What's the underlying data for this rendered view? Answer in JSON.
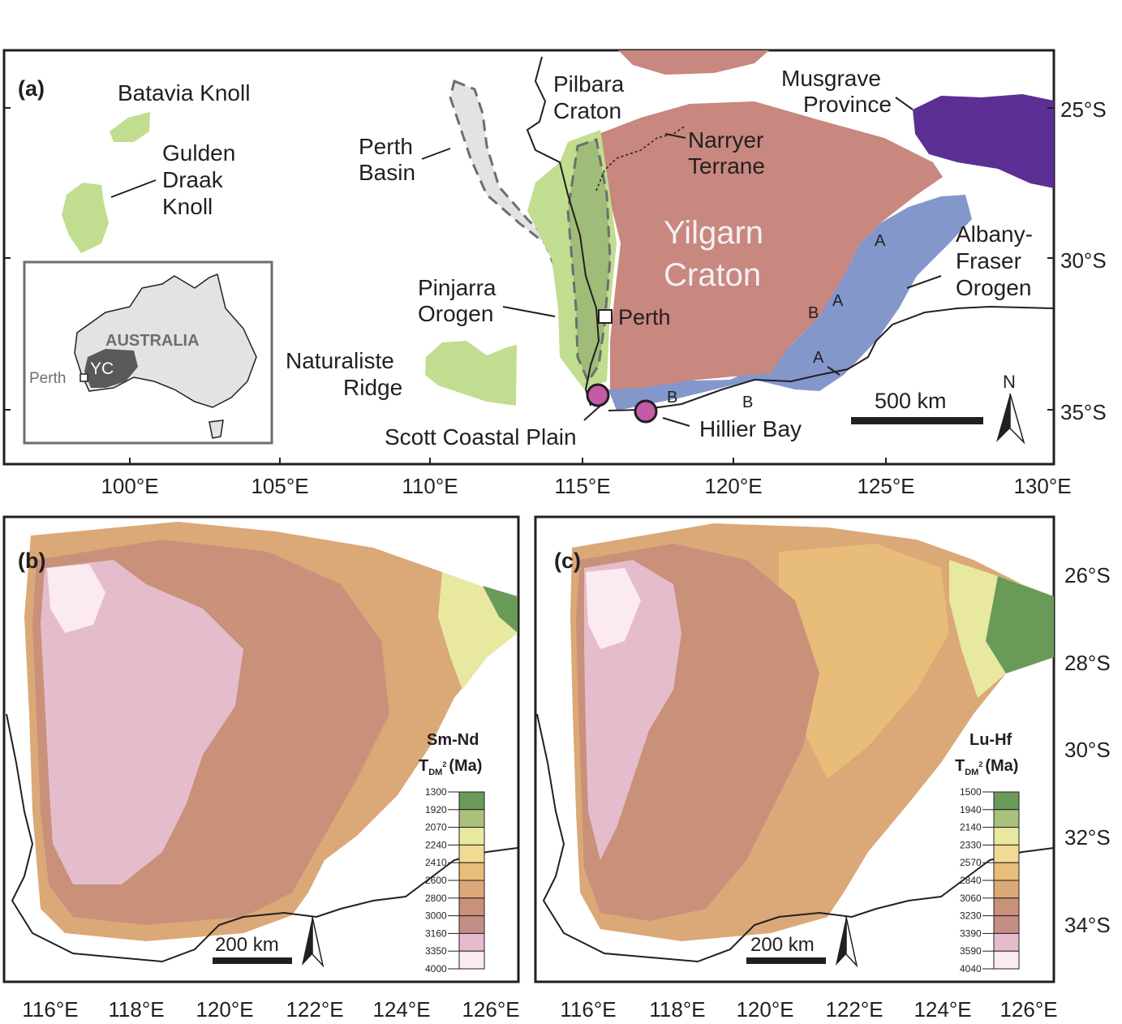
{
  "panel_a": {
    "label": "(a)",
    "regions": {
      "batavia": "Batavia Knoll",
      "gulden": [
        "Gulden",
        "Draak",
        "Knoll"
      ],
      "perth_basin": [
        "Perth",
        "Basin"
      ],
      "pilbara": [
        "Pilbara",
        "Craton"
      ],
      "narryer": [
        "Narryer",
        "Terrane"
      ],
      "musgrave": [
        "Musgrave",
        "Province"
      ],
      "yilgarn": [
        "Yilgarn",
        "Craton"
      ],
      "albany": [
        "Albany-",
        "Fraser",
        "Orogen"
      ],
      "pinjarra": [
        "Pinjarra",
        "Orogen"
      ],
      "naturaliste": [
        "Naturaliste",
        "Ridge"
      ],
      "perth_city": "Perth",
      "scott": "Scott Coastal Plain",
      "hillier": "Hillier Bay"
    },
    "markers_a": "A",
    "markers_b": "B",
    "inset": {
      "country": "AUSTRALIA",
      "yc": "YC",
      "city": "Perth"
    },
    "scale_bar": "500 km",
    "north": "N",
    "x_ticks": [
      "100°E",
      "105°E",
      "110°E",
      "115°E",
      "120°E",
      "125°E",
      "130°E"
    ],
    "y_ticks": [
      "25°S",
      "30°S",
      "35°S"
    ]
  },
  "panel_b": {
    "label": "(b)",
    "legend_title": "Sm-Nd",
    "legend_unit": "T",
    "legend_sub": "DM",
    "legend_sup": "2",
    "legend_ma": "(Ma)",
    "legend_values": [
      "1300",
      "1920",
      "2070",
      "2240",
      "2410",
      "2600",
      "2800",
      "3000",
      "3160",
      "3350",
      "4000"
    ],
    "scale_bar": "200 km",
    "x_ticks": [
      "116°E",
      "118°E",
      "120°E",
      "122°E",
      "124°E",
      "126°E"
    ]
  },
  "panel_c": {
    "label": "(c)",
    "legend_title": "Lu-Hf",
    "legend_unit": "T",
    "legend_sub": "DM",
    "legend_sup": "2",
    "legend_ma": "(Ma)",
    "legend_values": [
      "1500",
      "1940",
      "2140",
      "2330",
      "2570",
      "2840",
      "3060",
      "3230",
      "3390",
      "3590",
      "4040"
    ],
    "scale_bar": "200 km",
    "x_ticks": [
      "116°E",
      "118°E",
      "120°E",
      "122°E",
      "124°E",
      "126°E"
    ],
    "y_ticks": [
      "26°S",
      "28°S",
      "30°S",
      "32°S",
      "34°S"
    ]
  },
  "colors": {
    "yilgarn": "#c8877f",
    "albany": "#8497cb",
    "musgrave": "#5b2f93",
    "green_light": "#c1dd8f",
    "green_dark": "#9fbc78",
    "basin_grey": "#e3e3e4",
    "site": "#c35ba6",
    "legend_ramp": [
      "#6a9a58",
      "#a9c17c",
      "#e8e8a1",
      "#f1da93",
      "#e8bd79",
      "#dba878",
      "#c9907a",
      "#c48d86",
      "#e4bccb",
      "#fbeaf0"
    ]
  }
}
